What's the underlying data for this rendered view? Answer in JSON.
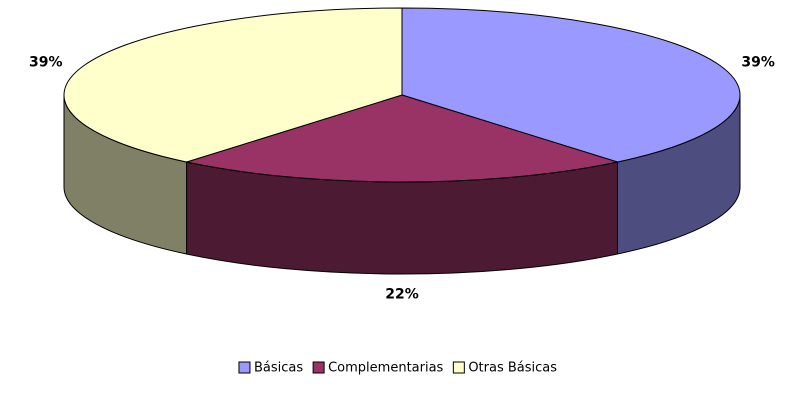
{
  "chart_data": {
    "type": "pie",
    "categories": [
      "Básicas",
      "Complementarias",
      "Otras Básicas"
    ],
    "values": [
      39,
      22,
      39
    ],
    "value_labels": [
      "39%",
      "22%",
      "39%"
    ],
    "colors": [
      "#9999ff",
      "#993366",
      "#ffffcc"
    ],
    "legend": "bottom"
  }
}
